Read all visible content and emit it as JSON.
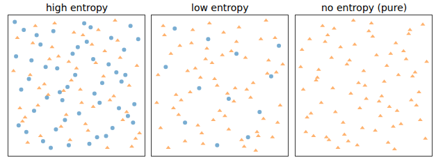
{
  "chart_data": [
    {
      "type": "scatter",
      "title": "high entropy",
      "xlim": [
        -3,
        103
      ],
      "ylim": [
        -3,
        103
      ],
      "tick_labels": false,
      "grid": false,
      "series": [
        {
          "color": "#1f77b4",
          "marker": "circle",
          "x": [
            3,
            11,
            19,
            27,
            35,
            44,
            52,
            61,
            70,
            78,
            87,
            95,
            7,
            15,
            24,
            32,
            41,
            49,
            58,
            66,
            75,
            83,
            92,
            5,
            13,
            22,
            30,
            39,
            47,
            56,
            64,
            73,
            81,
            90,
            98,
            9,
            17,
            26,
            34,
            43,
            51,
            60,
            68,
            77,
            85,
            94,
            2,
            37,
            63,
            88
          ],
          "y": [
            72,
            15,
            88,
            41,
            63,
            5,
            29,
            94,
            52,
            18,
            77,
            36,
            47,
            69,
            8,
            91,
            24,
            58,
            83,
            11,
            66,
            33,
            95,
            20,
            55,
            81,
            3,
            39,
            74,
            97,
            44,
            12,
            60,
            27,
            85,
            92,
            31,
            64,
            17,
            49,
            79,
            6,
            37,
            86,
            53,
            22,
            98,
            45,
            70,
            58
          ]
        },
        {
          "color": "#ff7f0e",
          "marker": "triangle-up",
          "x": [
            6,
            14,
            22,
            31,
            40,
            48,
            57,
            65,
            74,
            82,
            91,
            99,
            1,
            10,
            18,
            28,
            36,
            45,
            54,
            62,
            71,
            80,
            89,
            97,
            4,
            12,
            21,
            29,
            38,
            46,
            55,
            63,
            72,
            79,
            93,
            8,
            16,
            25,
            33,
            42,
            50,
            59,
            67,
            76,
            84,
            96,
            20,
            53,
            86,
            44
          ],
          "y": [
            33,
            58,
            12,
            79,
            46,
            90,
            21,
            67,
            3,
            84,
            50,
            14,
            61,
            26,
            95,
            43,
            72,
            9,
            37,
            81,
            57,
            99,
            30,
            65,
            86,
            7,
            48,
            70,
            19,
            54,
            88,
            34,
            76,
            42,
            4,
            23,
            82,
            51,
            97,
            28,
            63,
            16,
            92,
            39,
            71,
            10,
            35,
            47,
            24,
            68
          ]
        }
      ]
    },
    {
      "type": "scatter",
      "title": "low entropy",
      "xlim": [
        -3,
        103
      ],
      "ylim": [
        -3,
        103
      ],
      "tick_labels": false,
      "grid": false,
      "series": [
        {
          "color": "#1f77b4",
          "marker": "circle",
          "x": [
            8,
            23,
            41,
            57,
            72,
            90,
            15,
            34,
            63,
            81,
            48,
            96
          ],
          "y": [
            64,
            22,
            85,
            40,
            11,
            57,
            93,
            48,
            74,
            30,
            5,
            80
          ]
        },
        {
          "color": "#ff7f0e",
          "marker": "triangle-up",
          "x": [
            4,
            12,
            20,
            29,
            37,
            46,
            54,
            63,
            71,
            80,
            88,
            97,
            7,
            16,
            25,
            33,
            42,
            50,
            59,
            67,
            76,
            84,
            93,
            2,
            10,
            19,
            27,
            36,
            44,
            53,
            61,
            70,
            78,
            87,
            95,
            6,
            14,
            23,
            31,
            40,
            48,
            57,
            65,
            74,
            82,
            91,
            99,
            18,
            35,
            52,
            69,
            86,
            1,
            28,
            45,
            62,
            79,
            94,
            39,
            56
          ],
          "y": [
            18,
            74,
            39,
            92,
            6,
            55,
            27,
            83,
            47,
            12,
            69,
            35,
            88,
            43,
            61,
            20,
            97,
            31,
            76,
            9,
            52,
            25,
            86,
            58,
            3,
            80,
            45,
            14,
            67,
            90,
            38,
            71,
            1,
            59,
            22,
            95,
            33,
            8,
            63,
            78,
            50,
            17,
            94,
            41,
            85,
            11,
            66,
            28,
            56,
            73,
            4,
            99,
            37,
            82,
            24,
            48,
            15,
            60,
            70,
            44
          ]
        }
      ]
    },
    {
      "type": "scatter",
      "title": "no entropy (pure)",
      "xlim": [
        -3,
        103
      ],
      "ylim": [
        -3,
        103
      ],
      "tick_labels": false,
      "grid": false,
      "series": [
        {
          "color": "#ff7f0e",
          "marker": "triangle-up",
          "x": [
            3,
            11,
            20,
            28,
            37,
            45,
            54,
            62,
            71,
            79,
            88,
            96,
            6,
            15,
            23,
            32,
            40,
            49,
            57,
            66,
            74,
            83,
            91,
            1,
            9,
            18,
            26,
            35,
            43,
            52,
            60,
            69,
            77,
            86,
            94,
            5,
            13,
            22,
            30,
            39,
            47,
            56,
            64,
            73,
            81,
            90,
            98,
            8,
            17,
            25,
            34,
            42,
            51,
            59,
            68,
            76,
            85,
            93,
            2,
            14,
            27,
            38,
            50,
            63,
            75,
            87,
            99,
            21,
            46,
            70
          ],
          "y": [
            47,
            12,
            83,
            30,
            66,
            5,
            91,
            38,
            74,
            21,
            57,
            96,
            26,
            62,
            9,
            79,
            44,
            18,
            87,
            53,
            2,
            70,
            35,
            64,
            29,
            95,
            48,
            13,
            81,
            40,
            73,
            7,
            58,
            92,
            24,
            15,
            54,
            88,
            3,
            69,
            33,
            97,
            42,
            19,
            76,
            60,
            10,
            85,
            37,
            71,
            22,
            99,
            50,
            16,
            65,
            31,
            89,
            45,
            77,
            56,
            93,
            8,
            61,
            27,
            82,
            39,
            68,
            11,
            52,
            34
          ]
        }
      ]
    }
  ]
}
